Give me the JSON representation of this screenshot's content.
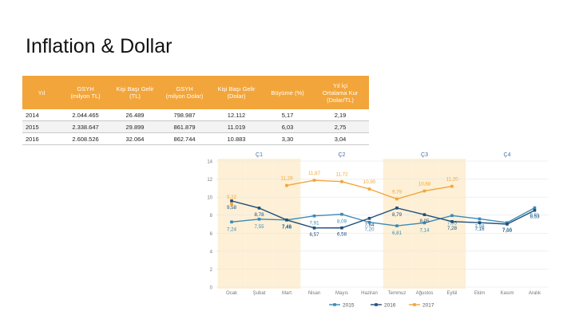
{
  "page": {
    "title": "Inflation & Dollar"
  },
  "table": {
    "headers": [
      "Yıl",
      "GSYH\n(milyon TL)",
      "Kişi Başı Gelir\n(TL)",
      "GSYH\n(milyon Dolar)",
      "Kişi Başı Gelir\n(Dolar)",
      "Büyüme (%)",
      "Yıl İçi\nOrtalama Kur\n(Dolar/TL)"
    ],
    "rows": [
      [
        "2014",
        "2.044.465",
        "26.489",
        "798.987",
        "12.112",
        "5,17",
        "2,19"
      ],
      [
        "2015",
        "2.338.647",
        "29.899",
        "861.879",
        "11.019",
        "6,03",
        "2,75"
      ],
      [
        "2016",
        "2.608.526",
        "32.064",
        "862.744",
        "10.883",
        "3,30",
        "3,04"
      ]
    ]
  },
  "chart_data": {
    "type": "line",
    "categories": [
      "Ocak",
      "Şubat",
      "Mart",
      "Nisan",
      "Mayıs",
      "Haziran",
      "Temmuz",
      "Ağustos",
      "Eylül",
      "Ekim",
      "Kasım",
      "Aralık"
    ],
    "quarters": [
      "Ç1",
      "Ç2",
      "Ç3",
      "Ç4"
    ],
    "shaded_months": [
      0,
      1,
      2,
      6,
      7,
      8
    ],
    "ylim": [
      0,
      14
    ],
    "yticks": [
      0,
      2,
      4,
      6,
      8,
      10,
      12,
      14
    ],
    "series": [
      {
        "name": "2015",
        "color": "#3b8ab5",
        "values": [
          7.24,
          7.55,
          7.46,
          7.91,
          8.09,
          7.2,
          6.81,
          7.14,
          7.95,
          7.58,
          7.16,
          8.81
        ],
        "labels": [
          "7,24",
          "7,55",
          "7,46",
          "7,91",
          "8,09",
          "7,20",
          "6,81",
          "7,14",
          "7,95",
          "7,58",
          "7,16",
          "8,81"
        ]
      },
      {
        "name": "2016",
        "color": "#1f4e79",
        "values": [
          9.58,
          8.78,
          7.46,
          6.57,
          6.58,
          7.64,
          8.79,
          8.05,
          7.28,
          7.16,
          7.0,
          8.53
        ],
        "labels": [
          "9,58",
          "8,78",
          "7,46",
          "6,57",
          "6,58",
          "7,64",
          "8,79",
          "8,05",
          "7,28",
          "7,16",
          "7,00",
          "8,53"
        ]
      },
      {
        "name": "2017",
        "color": "#f2a53a",
        "values": [
          9.22,
          null,
          11.29,
          11.87,
          11.72,
          10.9,
          9.79,
          10.68,
          11.2,
          null,
          null,
          null
        ],
        "labels": [
          "9,22",
          "",
          "11,29",
          "11,87",
          "11,72",
          "10,90",
          "9,79",
          "10,68",
          "11,20",
          "",
          "",
          ""
        ]
      }
    ]
  }
}
